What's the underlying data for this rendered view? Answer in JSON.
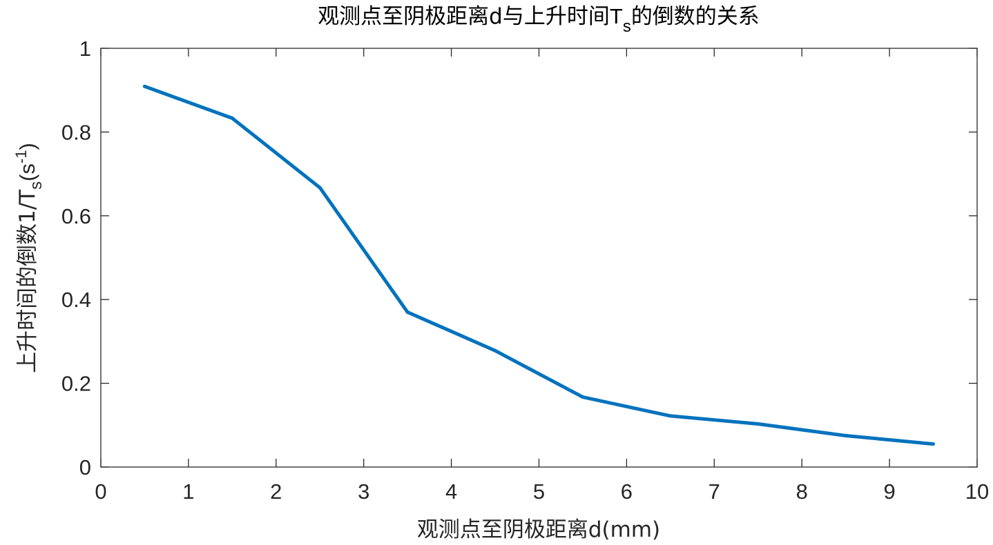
{
  "chart_data": {
    "type": "line",
    "title": "观测点至阴极距离d与上升时间",
    "title_symbol": "T",
    "title_symbol_sub": "s",
    "title_suffix": "的倒数的关系",
    "xlabel": "观测点至阴极距离d(mm)",
    "ylabel_prefix": "上升时间的倒数1/T",
    "ylabel_sub": "s",
    "ylabel_mid": "(s",
    "ylabel_sup": "-1",
    "ylabel_suffix": ")",
    "xlim": [
      0,
      10
    ],
    "ylim": [
      0,
      1
    ],
    "x_ticks": [
      "0",
      "1",
      "2",
      "3",
      "4",
      "5",
      "6",
      "7",
      "8",
      "9",
      "10"
    ],
    "y_ticks": [
      "0",
      "0.2",
      "0.4",
      "0.6",
      "0.8",
      "1"
    ],
    "grid": false,
    "line_color": "#0072bd",
    "series": [
      {
        "x": [
          0.5,
          1.5,
          2.5,
          3.5,
          4.5,
          5.5,
          6.5,
          7.5,
          8.5,
          9.5
        ],
        "y": [
          0.909,
          0.833,
          0.667,
          0.37,
          0.278,
          0.167,
          0.122,
          0.103,
          0.075,
          0.055
        ]
      }
    ]
  }
}
